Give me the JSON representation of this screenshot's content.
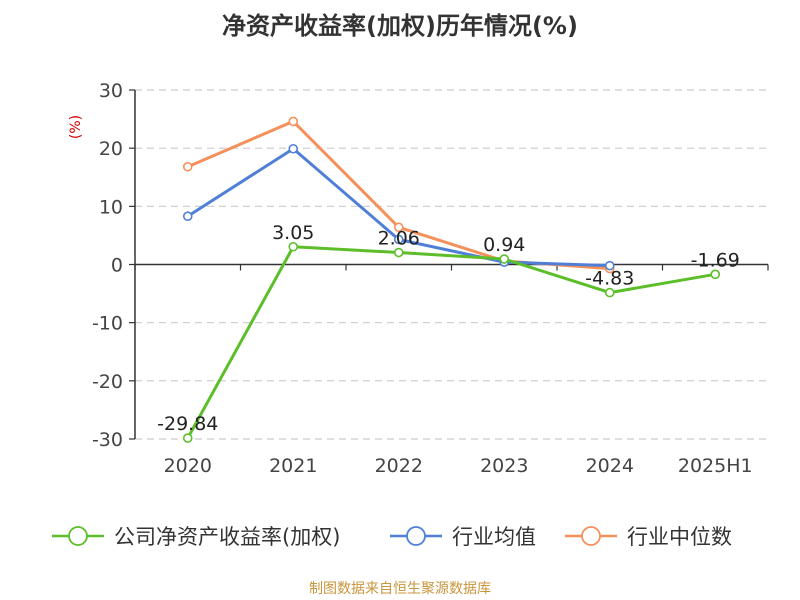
{
  "title": "净资产收益率(加权)历年情况(%)",
  "source": "制图数据来自恒生聚源数据库",
  "chart_data": {
    "type": "line",
    "title": "净资产收益率(加权)历年情况(%)",
    "ylabel": "(%)",
    "xlabel": "",
    "categories": [
      "2020",
      "2021",
      "2022",
      "2023",
      "2024",
      "2025H1"
    ],
    "ylim": [
      -30,
      30
    ],
    "yticks": [
      30,
      20,
      10,
      0,
      -10,
      -20,
      -30
    ],
    "grid": true,
    "legend_position": "bottom",
    "series": [
      {
        "name": "公司净资产收益率(加权)",
        "color": "#5cbf2a",
        "values": [
          -29.84,
          3.05,
          2.06,
          0.94,
          -4.83,
          -1.69
        ],
        "labels": [
          "-29.84",
          "3.05",
          "2.06",
          "0.94",
          "-4.83",
          "-1.69"
        ]
      },
      {
        "name": "行业均值",
        "color": "#4f7fd6",
        "values": [
          8.3,
          19.9,
          4.3,
          0.4,
          -0.2,
          null
        ]
      },
      {
        "name": "行业中位数",
        "color": "#f5905a",
        "values": [
          16.8,
          24.6,
          6.4,
          0.6,
          -0.7,
          null
        ]
      }
    ]
  }
}
